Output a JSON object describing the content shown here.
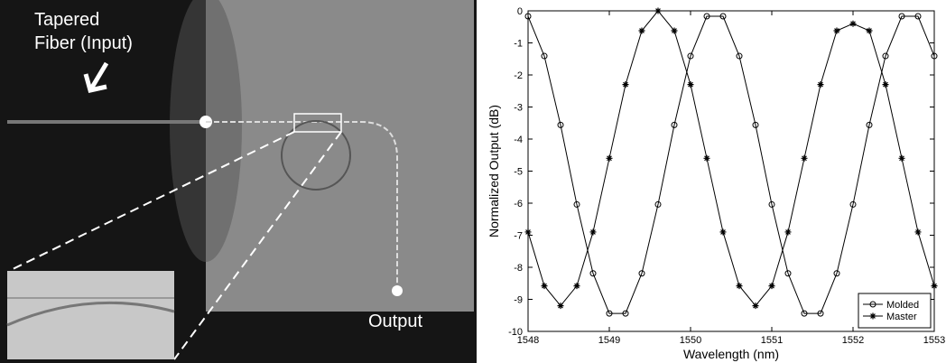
{
  "photo": {
    "input_label_lines": [
      "Tapered",
      "Fiber (Input)"
    ],
    "output_label": "Output"
  },
  "chart_data": {
    "type": "line",
    "xlabel": "Wavelength (nm)",
    "ylabel": "Normalized Output (dB)",
    "x": [
      1548.0,
      1548.2,
      1548.4,
      1548.6,
      1548.8,
      1549.0,
      1549.2,
      1549.4,
      1549.6,
      1549.8,
      1550.0,
      1550.2,
      1550.4,
      1550.6,
      1550.8,
      1551.0,
      1551.2,
      1551.4,
      1551.6,
      1551.8,
      1552.0,
      1552.2,
      1552.4,
      1552.6,
      1552.8,
      1553.0
    ],
    "series": [
      {
        "name": "Molded",
        "color": "#000000",
        "marker": "circle",
        "values": [
          -0.17,
          -1.41,
          -3.56,
          -6.04,
          -8.19,
          -9.44,
          -9.44,
          -8.19,
          -6.04,
          -3.56,
          -1.41,
          -0.17,
          -0.17,
          -1.41,
          -3.56,
          -6.04,
          -8.19,
          -9.44,
          -9.44,
          -8.19,
          -6.04,
          -3.56,
          -1.41,
          -0.17,
          -0.17,
          -1.41
        ]
      },
      {
        "name": "Master",
        "color": "#000000",
        "marker": "star",
        "values": [
          -6.9,
          -8.58,
          -9.2,
          -8.58,
          -6.9,
          -4.6,
          -2.3,
          -0.62,
          0,
          -0.62,
          -2.3,
          -4.6,
          -6.9,
          -8.58,
          -9.2,
          -8.58,
          -6.9,
          -4.6,
          -2.3,
          -0.62,
          -0.4,
          -0.62,
          -2.3,
          -4.6,
          -6.9,
          -8.58
        ]
      }
    ],
    "xlim": [
      1548,
      1553
    ],
    "xticks": [
      1548,
      1549,
      1550,
      1551,
      1552,
      1553
    ],
    "ylim": [
      -10,
      0
    ],
    "yticks": [
      -10,
      -9,
      -8,
      -7,
      -6,
      -5,
      -4,
      -3,
      -2,
      -1,
      0
    ],
    "grid": false,
    "legend": "lower right"
  }
}
